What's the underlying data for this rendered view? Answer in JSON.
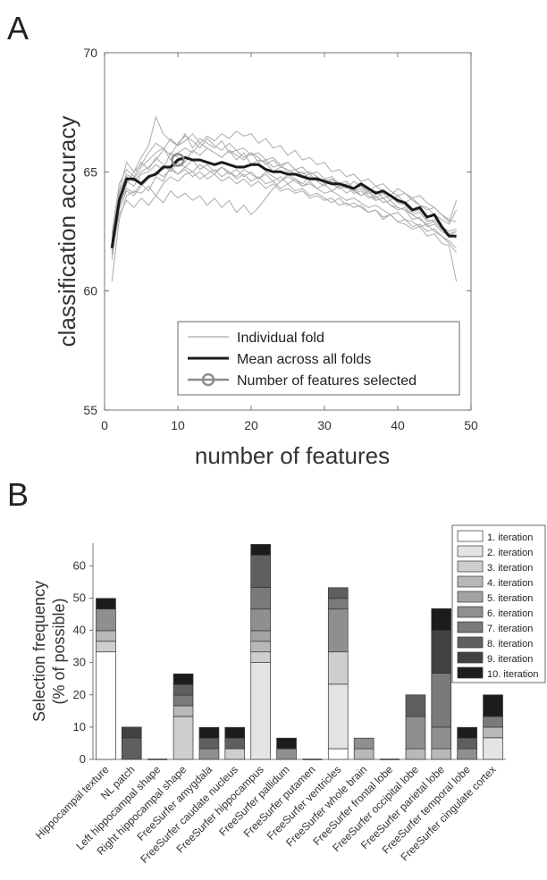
{
  "panel_labels": {
    "a": "A",
    "b": "B"
  },
  "chart_data": [
    {
      "type": "line",
      "panel": "A",
      "xlabel": "number of features",
      "ylabel": "classification accuracy",
      "xlim": [
        0,
        50
      ],
      "ylim": [
        55,
        70
      ],
      "xticks": [
        "0",
        "10",
        "20",
        "30",
        "40",
        "50"
      ],
      "yticks": [
        "55",
        "60",
        "65",
        "70"
      ],
      "grid": false,
      "legend_position": "bottom-right",
      "legend": {
        "individual": "Individual fold",
        "mean": "Mean across all folds",
        "selected": "Number of features selected"
      },
      "colors": {
        "individual": "#aaaaaa",
        "mean": "#1a1a1a",
        "selected": "#8c8c8c"
      },
      "x": [
        1,
        2,
        3,
        4,
        5,
        6,
        7,
        8,
        9,
        10,
        11,
        12,
        13,
        14,
        15,
        16,
        17,
        18,
        19,
        20,
        21,
        22,
        23,
        24,
        25,
        26,
        27,
        28,
        29,
        30,
        31,
        32,
        33,
        34,
        35,
        36,
        37,
        38,
        39,
        40,
        41,
        42,
        43,
        44,
        45,
        46,
        47,
        48
      ],
      "mean": [
        61.8,
        63.8,
        64.7,
        64.7,
        64.5,
        64.8,
        64.9,
        65.2,
        65.2,
        65.5,
        65.6,
        65.5,
        65.5,
        65.4,
        65.3,
        65.4,
        65.3,
        65.2,
        65.2,
        65.3,
        65.3,
        65.1,
        65.0,
        65.0,
        64.9,
        64.9,
        64.8,
        64.7,
        64.7,
        64.6,
        64.5,
        64.5,
        64.4,
        64.3,
        64.5,
        64.3,
        64.1,
        64.2,
        64.0,
        63.8,
        63.7,
        63.4,
        63.5,
        63.1,
        63.2,
        62.7,
        62.3,
        62.3
      ],
      "selected_point": {
        "x": 10,
        "y": 65.5
      },
      "folds": [
        [
          61.5,
          63.5,
          64.5,
          65.0,
          65.3,
          65.8,
          66.2,
          66.0,
          65.5,
          65.8,
          66.0,
          65.8,
          66.2,
          66.0,
          65.8,
          65.6,
          65.9,
          65.5,
          65.8,
          65.3,
          65.5,
          65.4,
          65.0,
          65.2,
          65.1,
          64.9,
          65.0,
          64.7,
          64.8,
          64.5,
          64.6,
          64.3,
          64.4,
          64.2,
          64.0,
          64.2,
          63.8,
          63.9,
          63.6,
          63.5,
          63.4,
          63.0,
          63.1,
          62.7,
          62.8,
          62.5,
          62.3,
          62.5
        ],
        [
          60.4,
          63.0,
          64.0,
          64.2,
          64.1,
          64.4,
          64.0,
          64.5,
          64.8,
          64.6,
          64.9,
          65.0,
          64.7,
          64.9,
          65.1,
          64.8,
          65.0,
          64.7,
          64.9,
          64.6,
          64.8,
          64.5,
          64.6,
          64.3,
          64.5,
          64.2,
          64.3,
          64.0,
          64.1,
          63.9,
          63.7,
          63.9,
          63.6,
          63.7,
          63.5,
          63.3,
          63.4,
          63.0,
          63.2,
          62.9,
          62.8,
          62.6,
          62.7,
          62.3,
          62.4,
          62.0,
          61.9,
          60.4
        ],
        [
          62.2,
          64.2,
          65.4,
          65.0,
          65.6,
          66.1,
          67.3,
          66.6,
          66.3,
          66.1,
          66.6,
          66.0,
          66.4,
          66.2,
          66.0,
          66.3,
          65.8,
          65.9,
          65.6,
          65.8,
          65.4,
          65.5,
          65.2,
          65.3,
          65.0,
          65.1,
          64.8,
          64.9,
          64.6,
          64.7,
          64.5,
          64.3,
          64.4,
          64.1,
          64.2,
          63.9,
          64.0,
          63.7,
          63.8,
          63.5,
          63.4,
          63.2,
          63.3,
          62.9,
          63.0,
          62.7,
          62.5,
          62.6
        ],
        [
          61.9,
          63.8,
          64.8,
          64.6,
          65.0,
          65.2,
          65.5,
          65.9,
          66.4,
          66.1,
          66.3,
          66.6,
          66.2,
          66.5,
          66.3,
          66.6,
          66.4,
          66.7,
          66.5,
          66.6,
          66.2,
          66.4,
          66.0,
          66.1,
          65.7,
          65.9,
          65.5,
          65.6,
          65.3,
          65.4,
          65.0,
          65.1,
          64.8,
          64.9,
          64.6,
          64.7,
          64.4,
          64.5,
          64.2,
          64.0,
          64.1,
          63.8,
          63.6,
          63.5,
          63.2,
          63.0,
          62.8,
          63.4
        ],
        [
          62.0,
          64.0,
          64.6,
          64.4,
          64.9,
          65.0,
          65.3,
          65.1,
          65.8,
          65.6,
          65.4,
          65.9,
          65.7,
          66.0,
          65.8,
          65.6,
          65.9,
          65.7,
          65.5,
          65.8,
          65.6,
          65.3,
          65.5,
          65.2,
          65.4,
          65.1,
          64.9,
          65.0,
          64.8,
          64.6,
          64.7,
          64.4,
          64.5,
          64.2,
          64.3,
          64.0,
          63.8,
          63.9,
          63.6,
          63.4,
          63.5,
          63.2,
          63.0,
          62.8,
          62.9,
          62.6,
          62.4,
          62.2
        ],
        [
          61.7,
          63.6,
          64.3,
          64.1,
          64.5,
          64.2,
          64.8,
          64.6,
          65.2,
          64.9,
          65.1,
          64.8,
          65.0,
          64.7,
          64.9,
          64.6,
          64.8,
          64.5,
          64.7,
          64.4,
          64.6,
          64.3,
          64.5,
          64.2,
          64.3,
          64.1,
          64.2,
          63.9,
          64.0,
          63.8,
          63.9,
          63.6,
          63.7,
          63.5,
          63.6,
          63.3,
          63.4,
          63.1,
          63.2,
          62.9,
          63.0,
          62.7,
          62.8,
          62.5,
          62.6,
          62.3,
          62.1,
          61.8
        ],
        [
          61.6,
          63.2,
          63.8,
          63.5,
          63.9,
          63.6,
          64.0,
          63.7,
          64.2,
          63.9,
          64.1,
          63.8,
          64.0,
          63.6,
          63.9,
          63.5,
          63.8,
          63.3,
          63.6,
          63.2,
          63.5,
          63.9,
          64.3,
          64.6,
          64.8,
          64.6,
          64.4,
          64.5,
          64.3,
          64.1,
          64.2,
          64.0,
          63.8,
          63.9,
          63.7,
          63.5,
          63.6,
          63.4,
          63.2,
          63.3,
          63.0,
          62.9,
          62.7,
          62.8,
          62.5,
          62.3,
          62.0,
          61.6
        ],
        [
          62.4,
          64.5,
          65.1,
          64.8,
          65.4,
          65.1,
          65.6,
          65.3,
          65.0,
          65.4,
          65.2,
          65.5,
          65.1,
          65.3,
          65.0,
          65.2,
          64.9,
          65.1,
          64.8,
          65.0,
          64.7,
          64.9,
          64.6,
          64.8,
          64.5,
          64.7,
          64.4,
          64.6,
          64.3,
          64.5,
          64.2,
          64.4,
          64.1,
          64.3,
          64.0,
          64.2,
          63.9,
          64.1,
          63.8,
          64.0,
          63.7,
          63.9,
          63.6,
          63.4,
          63.5,
          63.2,
          63.0,
          62.9
        ],
        [
          61.3,
          63.4,
          64.2,
          64.0,
          64.4,
          64.7,
          65.0,
          64.8,
          65.1,
          64.9,
          65.2,
          65.0,
          65.3,
          65.1,
          64.9,
          65.2,
          65.0,
          64.8,
          65.1,
          64.9,
          64.7,
          65.0,
          64.8,
          64.6,
          64.9,
          64.7,
          64.5,
          64.8,
          64.6,
          64.4,
          64.7,
          64.5,
          64.3,
          64.6,
          64.4,
          64.2,
          64.4,
          64.2,
          64.0,
          64.3,
          64.1,
          63.9,
          64.0,
          63.7,
          63.5,
          63.2,
          62.9,
          63.8
        ],
        [
          62.1,
          64.1,
          64.9,
          64.7,
          65.2,
          65.5,
          65.8,
          66.0,
          65.7,
          66.2,
          66.5,
          66.3,
          66.0,
          66.4,
          66.1,
          65.9,
          66.2,
          65.9,
          66.0,
          65.7,
          65.8,
          65.5,
          65.6,
          65.3,
          65.4,
          65.1,
          65.2,
          64.9,
          65.0,
          64.7,
          64.8,
          64.5,
          64.6,
          64.3,
          64.4,
          64.1,
          64.2,
          63.9,
          64.0,
          63.7,
          63.6,
          63.3,
          63.4,
          63.0,
          62.9,
          62.6,
          62.4,
          62.5
        ]
      ]
    },
    {
      "type": "bar",
      "panel": "B",
      "stacked": true,
      "ylabel": "Selection frequency (% of possible)",
      "ylabel_lines": [
        "Selection frequency",
        "(% of possible)"
      ],
      "ylim": [
        0,
        67
      ],
      "yticks": [
        "0",
        "10",
        "20",
        "30",
        "40",
        "50",
        "60"
      ],
      "grid": false,
      "legend_position": "top-right",
      "categories": [
        "Hippocampal texture",
        "NL patch",
        "Left hippocampal shape",
        "Right hippocampal shape",
        "FreeSurfer amygdala",
        "FreeSurfer caudate nucleus",
        "FreeSurfer hippocampus",
        "FreeSurfer pallidum",
        "FreeSurfer putamen",
        "FreeSurfer ventricles",
        "FreeSurfer whole brain",
        "FreeSurfer frontal lobe",
        "FreeSurfer occipital lobe",
        "FreeSurfer parietal lobe",
        "FreeSurfer temporal lobe",
        "FreeSurfer cingulate cortex"
      ],
      "series": [
        {
          "name": "1. iteration",
          "color": "#ffffff",
          "values": [
            33.3,
            0,
            0,
            0,
            0,
            0,
            0,
            0,
            0,
            3.3,
            0,
            0,
            0,
            0,
            0,
            0
          ]
        },
        {
          "name": "2. iteration",
          "color": "#e4e4e4",
          "values": [
            0,
            0,
            0,
            0,
            0,
            0,
            30.0,
            0,
            0,
            20.0,
            0,
            0,
            0,
            0,
            0,
            6.7
          ]
        },
        {
          "name": "3. iteration",
          "color": "#cecece",
          "values": [
            3.3,
            0,
            0,
            13.3,
            0,
            3.3,
            3.3,
            0,
            0,
            10.0,
            0,
            0,
            0,
            0,
            0,
            0
          ]
        },
        {
          "name": "4. iteration",
          "color": "#b8b8b8",
          "values": [
            3.3,
            0,
            0,
            3.3,
            0,
            0,
            3.3,
            0,
            0,
            0,
            3.3,
            0,
            3.3,
            3.3,
            0,
            3.3
          ]
        },
        {
          "name": "5. iteration",
          "color": "#a3a3a3",
          "values": [
            0,
            0,
            0,
            0,
            0,
            0,
            3.3,
            0,
            0,
            0,
            0,
            0,
            0,
            0,
            0,
            0
          ]
        },
        {
          "name": "6. iteration",
          "color": "#8f8f8f",
          "values": [
            6.7,
            0,
            0,
            0,
            3.3,
            0,
            6.7,
            3.3,
            0,
            13.3,
            3.3,
            0,
            10.0,
            6.7,
            3.3,
            0
          ]
        },
        {
          "name": "7. iteration",
          "color": "#7a7a7a",
          "values": [
            0,
            0,
            0,
            3.3,
            0,
            0,
            6.7,
            0,
            0,
            3.3,
            0,
            0,
            0,
            16.7,
            0,
            3.3
          ]
        },
        {
          "name": "8. iteration",
          "color": "#5f5f5f",
          "values": [
            0,
            6.7,
            0,
            3.3,
            3.3,
            3.3,
            10.0,
            0,
            0,
            3.3,
            0,
            0,
            6.7,
            0,
            3.3,
            0
          ]
        },
        {
          "name": "9. iteration",
          "color": "#424242",
          "values": [
            0,
            3.3,
            0,
            0,
            0,
            0,
            0,
            0,
            0,
            0,
            0,
            0,
            0,
            13.3,
            0,
            0
          ]
        },
        {
          "name": "10. iteration",
          "color": "#1c1c1c",
          "values": [
            3.3,
            0,
            0,
            3.3,
            3.3,
            3.3,
            3.3,
            3.3,
            0,
            0,
            0,
            0,
            0,
            6.7,
            3.3,
            6.7
          ]
        }
      ]
    }
  ]
}
